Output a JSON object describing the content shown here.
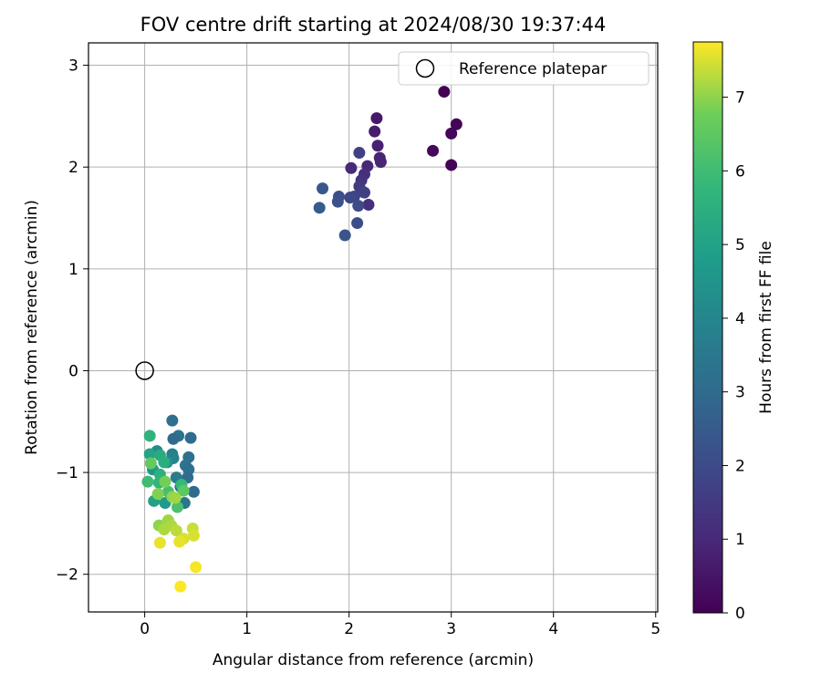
{
  "chart_data": {
    "type": "scatter",
    "title": "FOV centre drift starting at 2024/08/30 19:37:44",
    "xlabel": "Angular distance from reference (arcmin)",
    "ylabel": "Rotation from reference (arcmin)",
    "xlim": [
      -0.55,
      5.02
    ],
    "ylim": [
      -2.37,
      3.22
    ],
    "xticks": [
      0,
      1,
      2,
      3,
      4,
      5
    ],
    "yticks": [
      -2,
      -1,
      0,
      1,
      2,
      3
    ],
    "grid": true,
    "legend": {
      "position": "top-right",
      "entries": [
        "Reference platepar"
      ]
    },
    "reference_point": {
      "name": "Reference platepar",
      "x": 0,
      "y": 0
    },
    "colorbar": {
      "label": "Hours from first FF file",
      "min": 0,
      "max": 7.75,
      "ticks": [
        0,
        1,
        2,
        3,
        4,
        5,
        6,
        7
      ],
      "colormap": "viridis"
    },
    "series": [
      {
        "points": [
          {
            "x": 2.93,
            "y": 2.74,
            "c": 0.0
          },
          {
            "x": 3.05,
            "y": 2.42,
            "c": 0.1
          },
          {
            "x": 3.0,
            "y": 2.33,
            "c": 0.15
          },
          {
            "x": 2.82,
            "y": 2.16,
            "c": 0.2
          },
          {
            "x": 3.0,
            "y": 2.02,
            "c": 0.1
          },
          {
            "x": 2.27,
            "y": 2.48,
            "c": 0.6
          },
          {
            "x": 2.25,
            "y": 2.35,
            "c": 0.7
          },
          {
            "x": 2.28,
            "y": 2.21,
            "c": 0.8
          },
          {
            "x": 2.3,
            "y": 2.09,
            "c": 0.9
          },
          {
            "x": 2.31,
            "y": 2.05,
            "c": 0.9
          },
          {
            "x": 2.18,
            "y": 2.01,
            "c": 1.0
          },
          {
            "x": 2.02,
            "y": 1.99,
            "c": 1.05
          },
          {
            "x": 2.15,
            "y": 1.93,
            "c": 1.2
          },
          {
            "x": 2.12,
            "y": 1.87,
            "c": 1.3
          },
          {
            "x": 2.19,
            "y": 1.63,
            "c": 1.2
          },
          {
            "x": 2.1,
            "y": 2.14,
            "c": 1.7
          },
          {
            "x": 2.1,
            "y": 1.81,
            "c": 1.5
          },
          {
            "x": 2.13,
            "y": 1.76,
            "c": 1.6
          },
          {
            "x": 2.15,
            "y": 1.75,
            "c": 1.7
          },
          {
            "x": 2.05,
            "y": 1.71,
            "c": 1.8
          },
          {
            "x": 2.01,
            "y": 1.7,
            "c": 1.9
          },
          {
            "x": 2.09,
            "y": 1.62,
            "c": 2.0
          },
          {
            "x": 1.9,
            "y": 1.71,
            "c": 2.1
          },
          {
            "x": 1.89,
            "y": 1.66,
            "c": 2.2
          },
          {
            "x": 2.08,
            "y": 1.45,
            "c": 2.1
          },
          {
            "x": 1.74,
            "y": 1.79,
            "c": 2.4
          },
          {
            "x": 1.71,
            "y": 1.6,
            "c": 2.5
          },
          {
            "x": 1.96,
            "y": 1.33,
            "c": 2.3
          },
          {
            "x": 0.27,
            "y": -0.49,
            "c": 3.2
          },
          {
            "x": 0.33,
            "y": -0.64,
            "c": 3.3
          },
          {
            "x": 0.45,
            "y": -0.66,
            "c": 3.1
          },
          {
            "x": 0.28,
            "y": -0.67,
            "c": 3.0
          },
          {
            "x": 0.43,
            "y": -0.85,
            "c": 3.2
          },
          {
            "x": 0.4,
            "y": -0.93,
            "c": 3.3
          },
          {
            "x": 0.43,
            "y": -0.97,
            "c": 3.2
          },
          {
            "x": 0.48,
            "y": -1.19,
            "c": 3.0
          },
          {
            "x": 0.42,
            "y": -1.05,
            "c": 3.1
          },
          {
            "x": 0.31,
            "y": -1.05,
            "c": 3.6
          },
          {
            "x": 0.27,
            "y": -0.82,
            "c": 3.8
          },
          {
            "x": 0.28,
            "y": -0.86,
            "c": 3.9
          },
          {
            "x": 0.12,
            "y": -0.79,
            "c": 4.2
          },
          {
            "x": 0.22,
            "y": -0.9,
            "c": 4.4
          },
          {
            "x": 0.08,
            "y": -0.97,
            "c": 4.6
          },
          {
            "x": 0.35,
            "y": -1.14,
            "c": 3.5
          },
          {
            "x": 0.39,
            "y": -1.3,
            "c": 3.4
          },
          {
            "x": 0.2,
            "y": -1.3,
            "c": 4.7
          },
          {
            "x": 0.09,
            "y": -1.28,
            "c": 5.0
          },
          {
            "x": 0.05,
            "y": -0.82,
            "c": 5.1
          },
          {
            "x": 0.15,
            "y": -0.83,
            "c": 5.3
          },
          {
            "x": 0.19,
            "y": -0.9,
            "c": 5.4
          },
          {
            "x": 0.15,
            "y": -1.02,
            "c": 5.5
          },
          {
            "x": 0.05,
            "y": -0.64,
            "c": 5.6
          },
          {
            "x": 0.14,
            "y": -1.1,
            "c": 5.7
          },
          {
            "x": 0.03,
            "y": -1.09,
            "c": 6.0
          },
          {
            "x": 0.23,
            "y": -1.19,
            "c": 6.1
          },
          {
            "x": 0.36,
            "y": -1.12,
            "c": 5.8
          },
          {
            "x": 0.32,
            "y": -1.34,
            "c": 6.2
          },
          {
            "x": 0.38,
            "y": -1.18,
            "c": 6.5
          },
          {
            "x": 0.06,
            "y": -0.91,
            "c": 6.6
          },
          {
            "x": 0.2,
            "y": -1.09,
            "c": 6.8
          },
          {
            "x": 0.13,
            "y": -1.21,
            "c": 6.9
          },
          {
            "x": 0.27,
            "y": -1.24,
            "c": 7.0
          },
          {
            "x": 0.3,
            "y": -1.25,
            "c": 7.1
          },
          {
            "x": 0.14,
            "y": -1.52,
            "c": 7.0
          },
          {
            "x": 0.23,
            "y": -1.47,
            "c": 7.1
          },
          {
            "x": 0.26,
            "y": -1.52,
            "c": 7.2
          },
          {
            "x": 0.19,
            "y": -1.56,
            "c": 7.2
          },
          {
            "x": 0.31,
            "y": -1.57,
            "c": 7.3
          },
          {
            "x": 0.47,
            "y": -1.55,
            "c": 7.4
          },
          {
            "x": 0.48,
            "y": -1.62,
            "c": 7.5
          },
          {
            "x": 0.38,
            "y": -1.65,
            "c": 7.5
          },
          {
            "x": 0.34,
            "y": -1.68,
            "c": 7.6
          },
          {
            "x": 0.15,
            "y": -1.69,
            "c": 7.6
          },
          {
            "x": 0.5,
            "y": -1.93,
            "c": 7.7
          },
          {
            "x": 0.35,
            "y": -2.12,
            "c": 7.75
          }
        ]
      }
    ]
  }
}
